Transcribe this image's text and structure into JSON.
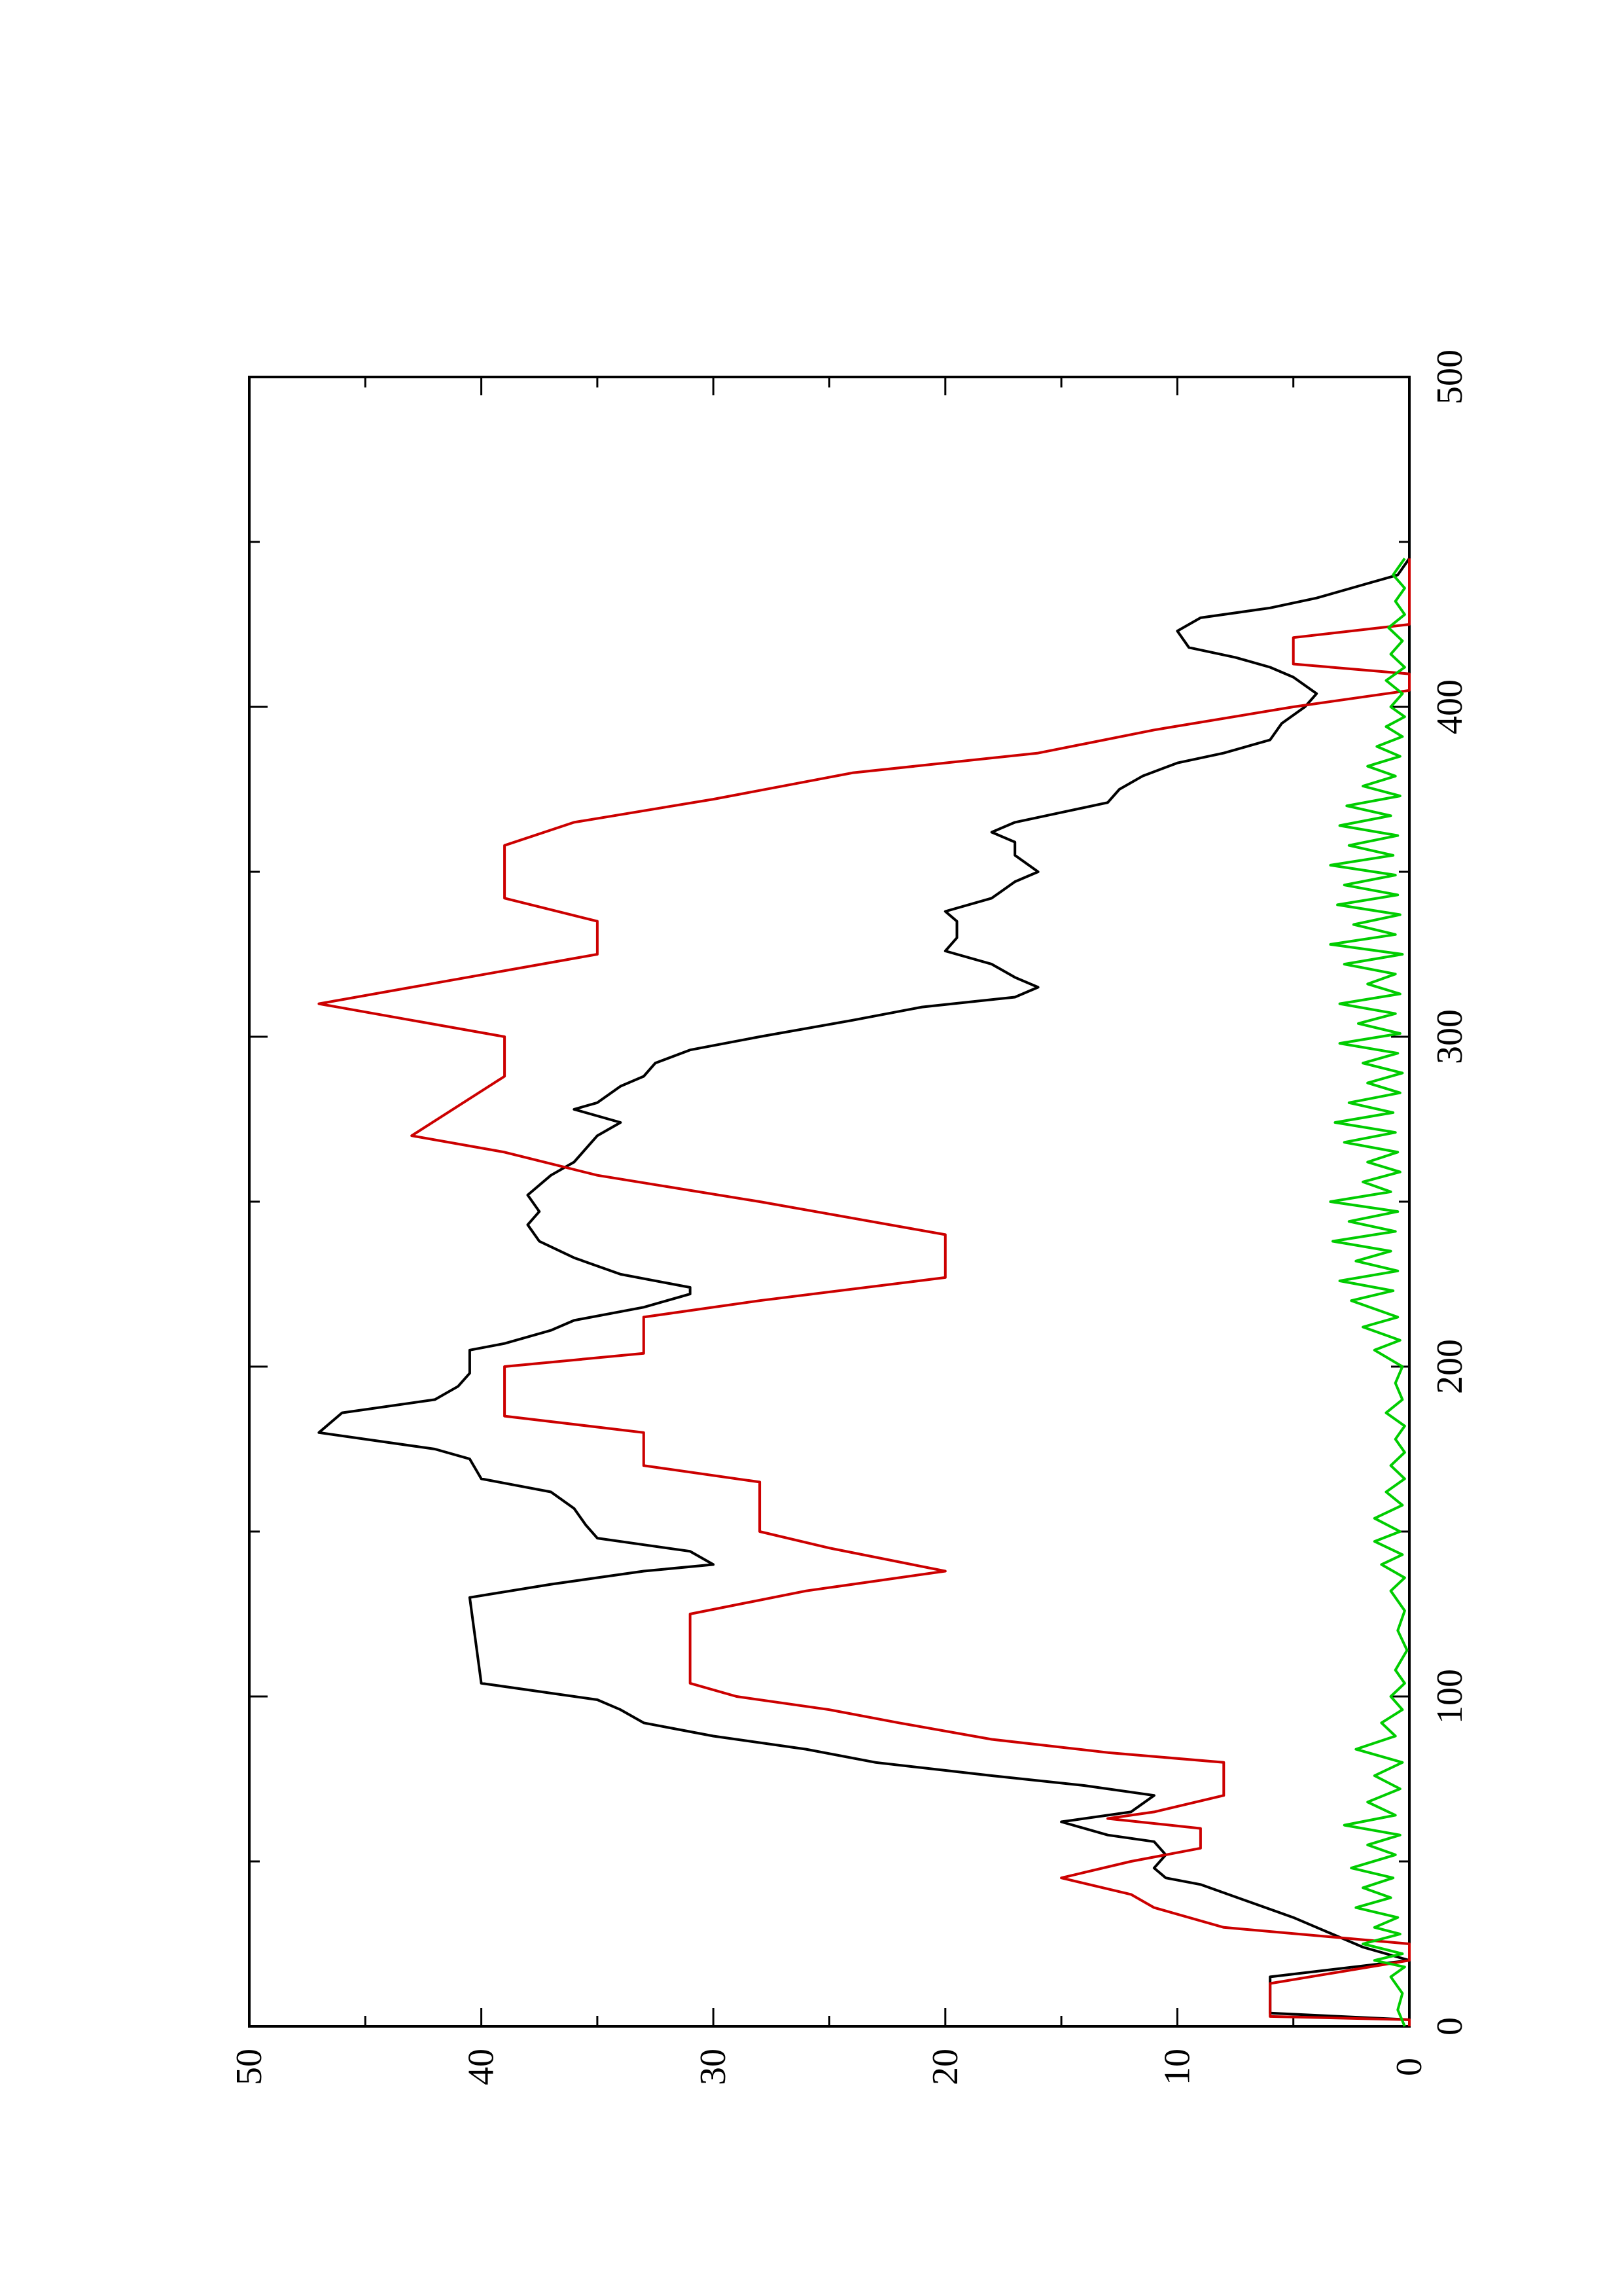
{
  "chart_data": {
    "type": "line",
    "orientation": "rotated-90-ccw",
    "title": "",
    "xlabel": "",
    "ylabel": "",
    "xlim": [
      0,
      500
    ],
    "ylim": [
      0,
      50
    ],
    "x_ticks": [
      0,
      100,
      200,
      300,
      400,
      500
    ],
    "y_ticks": [
      0,
      10,
      20,
      30,
      40,
      50
    ],
    "x_tick_labels": [
      "0",
      "100",
      "200",
      "300",
      "400",
      "500"
    ],
    "y_tick_labels": [
      "0",
      "10",
      "20",
      "30",
      "40",
      "50"
    ],
    "grid": false,
    "legend": "none",
    "series": [
      {
        "color": "#000000",
        "points": [
          [
            0,
            0
          ],
          [
            2,
            0
          ],
          [
            4,
            6
          ],
          [
            15,
            6
          ],
          [
            20,
            0
          ],
          [
            24,
            2
          ],
          [
            30,
            4
          ],
          [
            33,
            5
          ],
          [
            38,
            7
          ],
          [
            43,
            9
          ],
          [
            45,
            10.5
          ],
          [
            48,
            11
          ],
          [
            52,
            10.5
          ],
          [
            56,
            11
          ],
          [
            58,
            13
          ],
          [
            62,
            15
          ],
          [
            65,
            12
          ],
          [
            70,
            11
          ],
          [
            73,
            14
          ],
          [
            76,
            18
          ],
          [
            80,
            23
          ],
          [
            84,
            26
          ],
          [
            88,
            30
          ],
          [
            92,
            33
          ],
          [
            96,
            34
          ],
          [
            99,
            35
          ],
          [
            104,
            40
          ],
          [
            130,
            40.5
          ],
          [
            134,
            37
          ],
          [
            138,
            33
          ],
          [
            140,
            30
          ],
          [
            144,
            31
          ],
          [
            146,
            33
          ],
          [
            148,
            35
          ],
          [
            152,
            35.5
          ],
          [
            157,
            36
          ],
          [
            162,
            37
          ],
          [
            166,
            40
          ],
          [
            172,
            40.5
          ],
          [
            175,
            42
          ],
          [
            180,
            47
          ],
          [
            186,
            46
          ],
          [
            190,
            42
          ],
          [
            194,
            41
          ],
          [
            198,
            40.5
          ],
          [
            205,
            40.5
          ],
          [
            207,
            39
          ],
          [
            211,
            37
          ],
          [
            214,
            36
          ],
          [
            218,
            33
          ],
          [
            222,
            31
          ],
          [
            224,
            31
          ],
          [
            228,
            34
          ],
          [
            233,
            36
          ],
          [
            238,
            37.5
          ],
          [
            243,
            38
          ],
          [
            247,
            37.5
          ],
          [
            252,
            38
          ],
          [
            258,
            37
          ],
          [
            262,
            36
          ],
          [
            270,
            35
          ],
          [
            274,
            34
          ],
          [
            278,
            36
          ],
          [
            280,
            35
          ],
          [
            285,
            34
          ],
          [
            288,
            33
          ],
          [
            292,
            32.5
          ],
          [
            296,
            31
          ],
          [
            300,
            28
          ],
          [
            305,
            24
          ],
          [
            309,
            21
          ],
          [
            312,
            17
          ],
          [
            315,
            16
          ],
          [
            318,
            17
          ],
          [
            322,
            18
          ],
          [
            326,
            20
          ],
          [
            330,
            19.5
          ],
          [
            335,
            19.5
          ],
          [
            338,
            20
          ],
          [
            342,
            18
          ],
          [
            347,
            17
          ],
          [
            350,
            16
          ],
          [
            355,
            17
          ],
          [
            359,
            17
          ],
          [
            362,
            18
          ],
          [
            365,
            17
          ],
          [
            368,
            15
          ],
          [
            371,
            13
          ],
          [
            375,
            12.5
          ],
          [
            379,
            11.5
          ],
          [
            383,
            10
          ],
          [
            386,
            8
          ],
          [
            390,
            6
          ],
          [
            395,
            5.5
          ],
          [
            400,
            4.5
          ],
          [
            404,
            4
          ],
          [
            409,
            5
          ],
          [
            412,
            6
          ],
          [
            415,
            7.5
          ],
          [
            418,
            9.5
          ],
          [
            423,
            10
          ],
          [
            427,
            9
          ],
          [
            430,
            6
          ],
          [
            433,
            4
          ],
          [
            437,
            2
          ],
          [
            440,
            0.5
          ],
          [
            445,
            0
          ]
        ]
      },
      {
        "color": "#cc0000",
        "points": [
          [
            0,
            0
          ],
          [
            2,
            0
          ],
          [
            3,
            6
          ],
          [
            13,
            6
          ],
          [
            20,
            0
          ],
          [
            25,
            0
          ],
          [
            30,
            8
          ],
          [
            36,
            11
          ],
          [
            40,
            12
          ],
          [
            45,
            15
          ],
          [
            50,
            12
          ],
          [
            54,
            9
          ],
          [
            60,
            9
          ],
          [
            63,
            13
          ],
          [
            65,
            11
          ],
          [
            70,
            8
          ],
          [
            80,
            8
          ],
          [
            83,
            13
          ],
          [
            87,
            18
          ],
          [
            92,
            22
          ],
          [
            96,
            25
          ],
          [
            100,
            29
          ],
          [
            104,
            31
          ],
          [
            125,
            31
          ],
          [
            132,
            26
          ],
          [
            138,
            20
          ],
          [
            145,
            25
          ],
          [
            150,
            28
          ],
          [
            165,
            28
          ],
          [
            170,
            33
          ],
          [
            180,
            33
          ],
          [
            185,
            39
          ],
          [
            200,
            39
          ],
          [
            204,
            33
          ],
          [
            215,
            33
          ],
          [
            220,
            28
          ],
          [
            227,
            20
          ],
          [
            240,
            20
          ],
          [
            245,
            24
          ],
          [
            250,
            28
          ],
          [
            258,
            35
          ],
          [
            265,
            39
          ],
          [
            270,
            43
          ],
          [
            288,
            39
          ],
          [
            300,
            39
          ],
          [
            305,
            43
          ],
          [
            310,
            47
          ],
          [
            315,
            43
          ],
          [
            325,
            35
          ],
          [
            335,
            35
          ],
          [
            342,
            39
          ],
          [
            358,
            39
          ],
          [
            365,
            36
          ],
          [
            372,
            30
          ],
          [
            380,
            24
          ],
          [
            386,
            16
          ],
          [
            393,
            11
          ],
          [
            400,
            5
          ],
          [
            405,
            0
          ],
          [
            410,
            0
          ],
          [
            413,
            5
          ],
          [
            421,
            5
          ],
          [
            425,
            0
          ],
          [
            445,
            0
          ]
        ]
      },
      {
        "color": "#00cc00",
        "points": [
          [
            0,
            0.2
          ],
          [
            5,
            0.5
          ],
          [
            10,
            0.3
          ],
          [
            15,
            0.8
          ],
          [
            18,
            0.2
          ],
          [
            20,
            1.5
          ],
          [
            22,
            0.3
          ],
          [
            25,
            2.0
          ],
          [
            28,
            0.4
          ],
          [
            30,
            1.5
          ],
          [
            33,
            0.5
          ],
          [
            36,
            2.3
          ],
          [
            39,
            0.8
          ],
          [
            42,
            2.0
          ],
          [
            45,
            0.7
          ],
          [
            48,
            2.5
          ],
          [
            52,
            0.6
          ],
          [
            55,
            1.8
          ],
          [
            58,
            0.4
          ],
          [
            61,
            2.8
          ],
          [
            64,
            0.6
          ],
          [
            68,
            1.8
          ],
          [
            72,
            0.4
          ],
          [
            76,
            1.5
          ],
          [
            80,
            0.3
          ],
          [
            84,
            2.3
          ],
          [
            88,
            0.6
          ],
          [
            92,
            1.2
          ],
          [
            96,
            0.3
          ],
          [
            100,
            0.8
          ],
          [
            104,
            0.2
          ],
          [
            108,
            0.6
          ],
          [
            114,
            0.1
          ],
          [
            120,
            0.5
          ],
          [
            126,
            0.2
          ],
          [
            132,
            0.8
          ],
          [
            136,
            0.2
          ],
          [
            140,
            1.2
          ],
          [
            143,
            0.3
          ],
          [
            147,
            1.5
          ],
          [
            150,
            0.4
          ],
          [
            154,
            1.5
          ],
          [
            158,
            0.3
          ],
          [
            162,
            1.0
          ],
          [
            166,
            0.2
          ],
          [
            170,
            0.8
          ],
          [
            174,
            0.2
          ],
          [
            178,
            0.6
          ],
          [
            182,
            0.2
          ],
          [
            186,
            1.0
          ],
          [
            190,
            0.3
          ],
          [
            195,
            0.6
          ],
          [
            200,
            0.3
          ],
          [
            205,
            1.5
          ],
          [
            208,
            0.4
          ],
          [
            212,
            2.0
          ],
          [
            215,
            0.5
          ],
          [
            220,
            2.5
          ],
          [
            223,
            0.7
          ],
          [
            226,
            3.0
          ],
          [
            229,
            0.5
          ],
          [
            232,
            2.3
          ],
          [
            235,
            0.8
          ],
          [
            238,
            3.3
          ],
          [
            241,
            0.6
          ],
          [
            244,
            2.6
          ],
          [
            247,
            0.5
          ],
          [
            250,
            3.4
          ],
          [
            253,
            0.8
          ],
          [
            256,
            2.0
          ],
          [
            259,
            0.4
          ],
          [
            262,
            1.8
          ],
          [
            265,
            0.5
          ],
          [
            268,
            2.8
          ],
          [
            271,
            0.6
          ],
          [
            274,
            3.2
          ],
          [
            277,
            0.7
          ],
          [
            280,
            2.6
          ],
          [
            283,
            0.4
          ],
          [
            286,
            1.8
          ],
          [
            289,
            0.3
          ],
          [
            292,
            2.0
          ],
          [
            295,
            0.5
          ],
          [
            298,
            3.0
          ],
          [
            301,
            0.4
          ],
          [
            304,
            2.2
          ],
          [
            307,
            0.6
          ],
          [
            310,
            3.0
          ],
          [
            313,
            0.4
          ],
          [
            316,
            1.8
          ],
          [
            319,
            0.6
          ],
          [
            322,
            2.8
          ],
          [
            325,
            0.3
          ],
          [
            328,
            3.4
          ],
          [
            331,
            0.6
          ],
          [
            334,
            2.4
          ],
          [
            337,
            0.4
          ],
          [
            340,
            3.1
          ],
          [
            343,
            0.5
          ],
          [
            346,
            2.8
          ],
          [
            349,
            0.6
          ],
          [
            352,
            3.4
          ],
          [
            355,
            0.7
          ],
          [
            358,
            2.6
          ],
          [
            361,
            0.5
          ],
          [
            364,
            3.0
          ],
          [
            367,
            0.8
          ],
          [
            370,
            2.7
          ],
          [
            373,
            0.4
          ],
          [
            376,
            2.0
          ],
          [
            379,
            0.6
          ],
          [
            382,
            1.8
          ],
          [
            385,
            0.4
          ],
          [
            388,
            1.4
          ],
          [
            391,
            0.3
          ],
          [
            394,
            1.0
          ],
          [
            397,
            0.2
          ],
          [
            400,
            0.8
          ],
          [
            404,
            0.3
          ],
          [
            408,
            1.0
          ],
          [
            412,
            0.2
          ],
          [
            416,
            0.8
          ],
          [
            420,
            0.3
          ],
          [
            424,
            0.9
          ],
          [
            428,
            0.2
          ],
          [
            432,
            0.6
          ],
          [
            436,
            0.2
          ],
          [
            440,
            0.7
          ],
          [
            445,
            0.2
          ]
        ]
      }
    ]
  }
}
